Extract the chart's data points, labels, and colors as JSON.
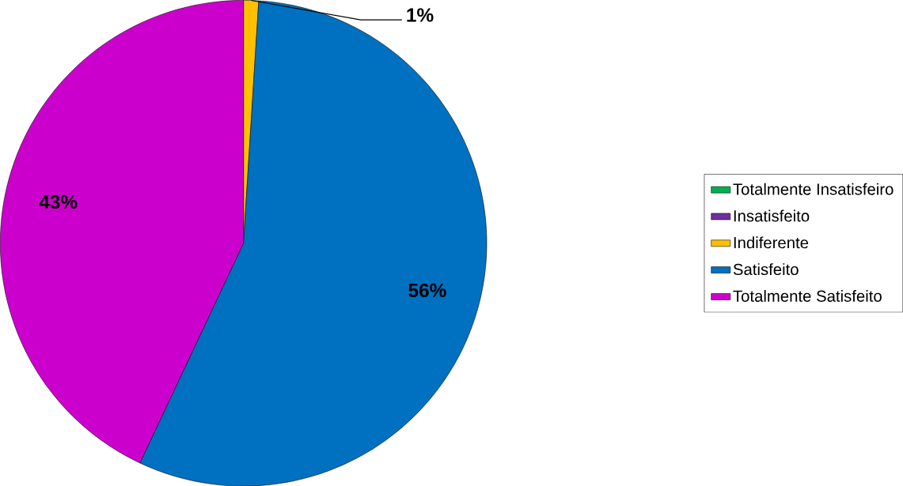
{
  "chart_data": {
    "type": "pie",
    "categories": [
      "Totalmente Insatisfeiro",
      "Insatisfeito",
      "Indiferente",
      "Satisfeito",
      "Totalmente Satisfeito"
    ],
    "values": [
      0,
      0,
      1,
      56,
      43
    ],
    "colors": [
      "#00b050",
      "#7030a0",
      "#ffc000",
      "#0070c0",
      "#cc00cc"
    ],
    "value_labels": [
      null,
      null,
      "1%",
      "56%",
      "43%"
    ],
    "legend": "right"
  }
}
